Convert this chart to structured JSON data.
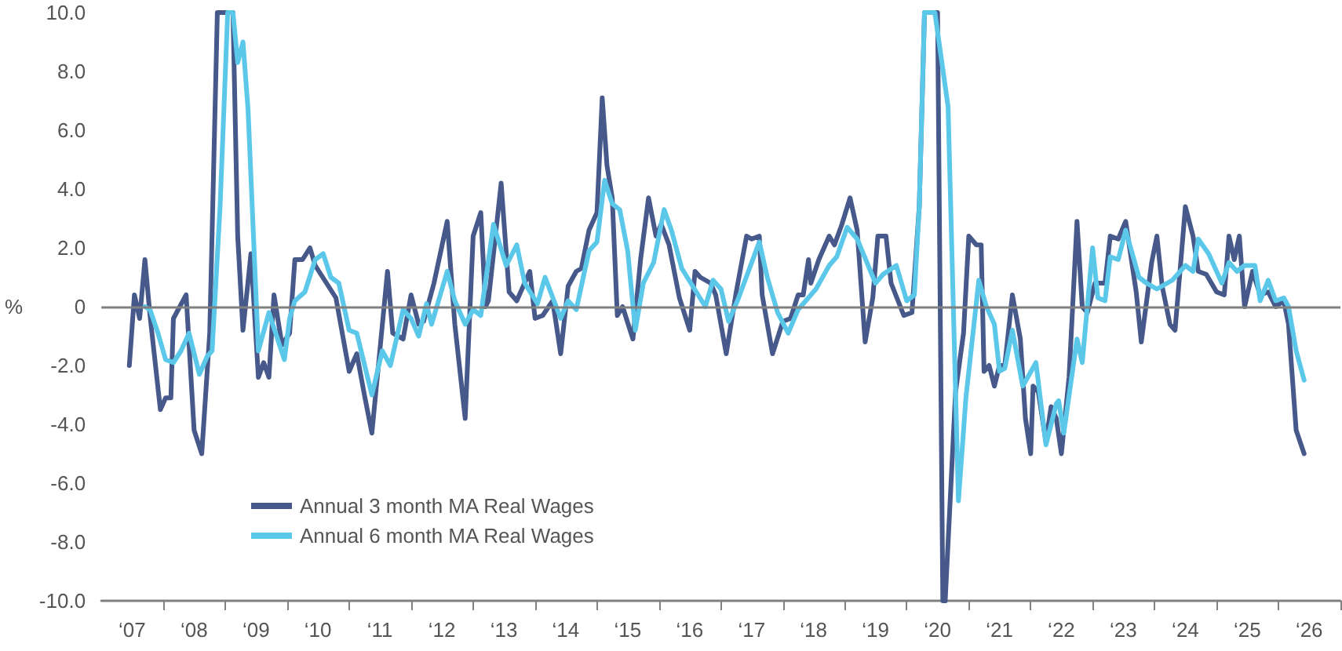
{
  "chart_data": {
    "type": "line",
    "ylabel": "%",
    "xlim": [
      "2007-01",
      "2027-01"
    ],
    "ylim": [
      -10,
      10
    ],
    "yticks": [
      {
        "value": -10,
        "label": "-10.0"
      },
      {
        "value": -8,
        "label": "-8.0"
      },
      {
        "value": -6,
        "label": "-6.0"
      },
      {
        "value": -4,
        "label": "-4.0"
      },
      {
        "value": -2,
        "label": "-2.0"
      },
      {
        "value": 0,
        "label": "0"
      },
      {
        "value": 2,
        "label": "2.0"
      },
      {
        "value": 4,
        "label": "4.0"
      },
      {
        "value": 6,
        "label": "6.0"
      },
      {
        "value": 8,
        "label": "8.0"
      },
      {
        "value": 10,
        "label": "10.0"
      }
    ],
    "xticks": [
      {
        "value": "2007-07",
        "label": "‘07"
      },
      {
        "value": "2008",
        "label": null
      },
      {
        "value": "2008-07",
        "label": "‘08"
      },
      {
        "value": "2009",
        "label": null
      },
      {
        "value": "2009-07",
        "label": "‘09"
      },
      {
        "value": "2010",
        "label": null
      },
      {
        "value": "2010-07",
        "label": "‘10"
      },
      {
        "value": "2011",
        "label": null
      },
      {
        "value": "2011-07",
        "label": "‘11"
      },
      {
        "value": "2012",
        "label": null
      },
      {
        "value": "2012-07",
        "label": "‘12"
      },
      {
        "value": "2013",
        "label": null
      },
      {
        "value": "2013-07",
        "label": "‘13"
      },
      {
        "value": "2014",
        "label": null
      },
      {
        "value": "2014-07",
        "label": "‘14"
      },
      {
        "value": "2015",
        "label": null
      },
      {
        "value": "2015-07",
        "label": "‘15"
      },
      {
        "value": "2016",
        "label": null
      },
      {
        "value": "2016-07",
        "label": "‘16"
      },
      {
        "value": "2017",
        "label": null
      },
      {
        "value": "2017-07",
        "label": "‘17"
      },
      {
        "value": "2018",
        "label": null
      },
      {
        "value": "2018-07",
        "label": "‘18"
      },
      {
        "value": "2019",
        "label": null
      },
      {
        "value": "2019-07",
        "label": "‘19"
      },
      {
        "value": "2020",
        "label": null
      },
      {
        "value": "2020-07",
        "label": "‘20"
      },
      {
        "value": "2021",
        "label": null
      },
      {
        "value": "2021-07",
        "label": "‘21"
      },
      {
        "value": "2022",
        "label": null
      },
      {
        "value": "2022-07",
        "label": "‘22"
      },
      {
        "value": "2023",
        "label": null
      },
      {
        "value": "2023-07",
        "label": "‘23"
      },
      {
        "value": "2024",
        "label": null
      },
      {
        "value": "2024-07",
        "label": "‘24"
      },
      {
        "value": "2025",
        "label": null
      },
      {
        "value": "2025-07",
        "label": "‘25"
      },
      {
        "value": "2026",
        "label": null
      },
      {
        "value": "2026-07",
        "label": "‘26"
      },
      {
        "value": "2027",
        "label": null
      }
    ],
    "grid": false,
    "legend": "bottom left",
    "line_style": "solid",
    "ref_lines": [
      {
        "axis": "y",
        "value": 0,
        "label": null,
        "color": "#808080"
      }
    ],
    "series": [
      {
        "name": "Annual 3 month MA Real Wages",
        "color": "#46598a",
        "x": [
          "2007-06-15",
          "2007-07-15",
          "2007-08-15",
          "2007-09-15",
          "2007-10-15",
          "2007-12-15",
          "2008-01-15",
          "2008-02-15",
          "2008-03-01",
          "2008-05-15",
          "2008-07-01",
          "2008-08-15",
          "2008-10-01",
          "2008-11-15",
          "2009-02-15",
          "2009-03-15",
          "2009-04-15",
          "2009-06-01",
          "2009-07-15",
          "2009-08-15",
          "2009-09-15",
          "2009-10-15",
          "2009-12-01",
          "2010-01-15",
          "2010-02-15",
          "2010-04-01",
          "2010-05-15",
          "2010-06-15",
          "2010-10-15",
          "2011-01-01",
          "2011-02-15",
          "2011-04-01",
          "2011-05-15",
          "2011-08-15",
          "2011-09-15",
          "2011-11-15",
          "2012-01-01",
          "2012-02-15",
          "2012-03-15",
          "2012-05-15",
          "2012-08-01",
          "2012-09-15",
          "2012-11-15",
          "2013-01-01",
          "2013-02-15",
          "2013-03-15",
          "2013-04-01",
          "2013-06-15",
          "2013-08-01",
          "2013-09-15",
          "2013-12-01",
          "2014-01-01",
          "2014-02-15",
          "2014-04-15",
          "2014-06-01",
          "2014-07-15",
          "2014-09-01",
          "2014-10-01",
          "2014-11-15",
          "2015-01-01",
          "2015-02-01",
          "2015-03-01",
          "2015-04-01",
          "2015-05-01",
          "2015-06-01",
          "2015-08-01",
          "2015-09-15",
          "2015-11-01",
          "2015-12-15",
          "2016-01-15",
          "2016-03-01",
          "2016-05-01",
          "2016-07-01",
          "2016-08-01",
          "2016-09-01",
          "2016-11-01",
          "2016-12-01",
          "2017-02-01",
          "2017-04-01",
          "2017-06-01",
          "2017-07-01",
          "2017-08-15",
          "2017-09-01",
          "2017-11-01",
          "2018-01-01",
          "2018-02-15",
          "2018-04-01",
          "2018-05-01",
          "2018-06-01",
          "2018-06-15",
          "2018-08-01",
          "2018-10-01",
          "2018-11-01",
          "2018-12-15",
          "2019-02-01",
          "2019-03-15",
          "2019-05-01",
          "2019-06-15",
          "2019-07-15",
          "2019-09-01",
          "2019-10-01",
          "2019-12-15",
          "2020-02-01",
          "2020-03-15",
          "2020-04-15",
          "2020-07-01",
          "2020-08-01",
          "2020-08-15",
          "2020-10-15",
          "2020-12-01",
          "2021-01-01",
          "2021-02-15",
          "2021-03-15",
          "2021-04-01",
          "2021-05-01",
          "2021-06-01",
          "2021-07-01",
          "2021-08-01",
          "2021-09-15",
          "2021-11-01",
          "2021-12-01",
          "2022-01-01",
          "2022-01-15",
          "2022-02-15",
          "2022-04-01",
          "2022-05-01",
          "2022-06-01",
          "2022-07-01",
          "2022-08-15",
          "2022-10-01",
          "2022-11-01",
          "2022-12-01",
          "2023-01-15",
          "2023-03-15",
          "2023-04-15",
          "2023-06-01",
          "2023-07-15",
          "2023-09-15",
          "2023-10-15",
          "2023-12-15",
          "2024-01-15",
          "2024-02-15",
          "2024-04-01",
          "2024-05-01",
          "2024-07-01",
          "2024-08-15",
          "2024-09-15",
          "2024-11-01",
          "2025-01-01",
          "2025-02-15",
          "2025-03-15",
          "2025-04-15",
          "2025-05-15",
          "2025-06-15",
          "2025-08-01",
          "2025-09-15",
          "2025-11-01",
          "2025-12-15",
          "2026-02-01",
          "2026-03-01",
          "2026-04-15",
          "2026-06-01"
        ],
        "values": [
          -2.0,
          0.4,
          -0.4,
          1.6,
          -0.3,
          -3.5,
          -3.1,
          -3.1,
          -0.4,
          0.4,
          -4.2,
          -5.0,
          -0.9,
          10,
          10,
          2.4,
          -0.8,
          1.8,
          -2.4,
          -1.9,
          -2.4,
          0.4,
          -1.3,
          -0.9,
          1.6,
          1.6,
          2.0,
          1.4,
          0.3,
          -2.2,
          -1.6,
          -3.0,
          -4.3,
          1.2,
          -0.9,
          -1.1,
          0.4,
          -0.6,
          -0.5,
          0.8,
          2.9,
          -0.6,
          -3.8,
          2.4,
          3.2,
          0.0,
          0.2,
          4.2,
          0.5,
          0.2,
          1.2,
          -0.4,
          -0.3,
          0.2,
          -1.6,
          0.7,
          1.2,
          1.3,
          2.6,
          3.2,
          7.1,
          4.8,
          3.7,
          -0.3,
          0.0,
          -1.1,
          1.6,
          3.7,
          2.4,
          2.8,
          2.1,
          0.3,
          -0.8,
          1.2,
          1.0,
          0.8,
          0.4,
          -1.6,
          0.5,
          2.4,
          2.3,
          2.4,
          0.4,
          -1.6,
          -0.5,
          -0.4,
          0.4,
          0.4,
          1.6,
          0.8,
          1.6,
          2.4,
          2.1,
          2.8,
          3.7,
          2.6,
          -1.2,
          0.3,
          2.4,
          2.4,
          0.8,
          -0.3,
          -0.2,
          3.4,
          10,
          10,
          -10,
          -10,
          -2.9,
          -0.9,
          2.4,
          2.1,
          2.1,
          -2.2,
          -2.0,
          -2.7,
          -2.0,
          -2.0,
          0.4,
          -1.1,
          -3.8,
          -5.0,
          -2.7,
          -2.9,
          -4.6,
          -3.4,
          -3.8,
          -5.0,
          -2.4,
          2.9,
          0.0,
          -0.2,
          0.8,
          0.8,
          2.4,
          2.3,
          2.9,
          0.5,
          -1.2,
          1.5,
          2.4,
          0.7,
          -0.6,
          -0.8,
          3.4,
          2.4,
          1.2,
          1.1,
          0.5,
          0.4,
          2.4,
          1.6,
          2.4,
          0.0,
          1.2,
          0.4,
          0.5,
          0.0,
          0.2,
          -0.6,
          -4.2,
          -5.0
        ]
      },
      {
        "name": "Annual 6 month MA Real Wages",
        "color": "#5bc8ea",
        "x": [
          "2007-09-15",
          "2007-10-15",
          "2007-12-01",
          "2008-01-15",
          "2008-03-01",
          "2008-04-15",
          "2008-06-01",
          "2008-08-01",
          "2008-09-15",
          "2008-10-15",
          "2008-12-01",
          "2009-01-15",
          "2009-02-15",
          "2009-03-15",
          "2009-04-15",
          "2009-05-15",
          "2009-07-15",
          "2009-09-15",
          "2009-12-15",
          "2010-01-15",
          "2010-02-15",
          "2010-04-15",
          "2010-06-15",
          "2010-08-01",
          "2010-09-15",
          "2010-11-01",
          "2011-01-01",
          "2011-02-15",
          "2011-05-15",
          "2011-07-15",
          "2011-09-01",
          "2011-11-15",
          "2012-01-01",
          "2012-02-15",
          "2012-04-01",
          "2012-05-01",
          "2012-08-01",
          "2012-09-15",
          "2012-11-15",
          "2013-01-01",
          "2013-02-15",
          "2013-05-01",
          "2013-07-15",
          "2013-09-15",
          "2013-11-01",
          "2014-01-15",
          "2014-03-01",
          "2014-06-01",
          "2014-07-15",
          "2014-09-01",
          "2014-11-15",
          "2015-01-01",
          "2015-02-15",
          "2015-04-01",
          "2015-05-15",
          "2015-07-01",
          "2015-08-15",
          "2015-10-01",
          "2015-12-01",
          "2016-02-01",
          "2016-03-15",
          "2016-05-15",
          "2016-10-01",
          "2016-11-15",
          "2017-01-01",
          "2017-02-15",
          "2017-04-15",
          "2017-08-15",
          "2017-10-01",
          "2017-12-01",
          "2018-02-01",
          "2018-04-01",
          "2018-07-15",
          "2018-10-01",
          "2018-11-15",
          "2019-01-15",
          "2019-03-15",
          "2019-07-01",
          "2019-08-15",
          "2019-11-01",
          "2020-01-01",
          "2020-02-15",
          "2020-03-15",
          "2020-04-15",
          "2020-06-15",
          "2020-09-01",
          "2020-11-01",
          "2020-12-15",
          "2021-03-01",
          "2021-04-15",
          "2021-06-01",
          "2021-07-01",
          "2021-08-01",
          "2021-09-15",
          "2021-11-15",
          "2022-02-01",
          "2022-04-01",
          "2022-06-01",
          "2022-06-15",
          "2022-07-15",
          "2022-10-01",
          "2022-11-01",
          "2023-01-01",
          "2023-02-01",
          "2023-03-15",
          "2023-04-15",
          "2023-06-01",
          "2023-07-15",
          "2023-10-01",
          "2023-11-15",
          "2024-01-15",
          "2024-04-15",
          "2024-07-01",
          "2024-08-15",
          "2024-09-15",
          "2024-11-15",
          "2025-02-01",
          "2025-03-15",
          "2025-05-01",
          "2025-06-15",
          "2025-08-15",
          "2025-09-15",
          "2025-11-01",
          "2025-12-15",
          "2026-02-01",
          "2026-03-01",
          "2026-04-15",
          "2026-06-01"
        ],
        "values": [
          0.0,
          -0.1,
          -0.9,
          -1.8,
          -1.9,
          -1.5,
          -0.9,
          -2.3,
          -1.7,
          -1.5,
          3.4,
          10,
          10,
          8.3,
          9.0,
          6.7,
          -1.5,
          -0.2,
          -1.8,
          -0.4,
          0.2,
          0.5,
          1.6,
          1.8,
          1.0,
          0.8,
          -0.8,
          -0.9,
          -3.0,
          -1.5,
          -2.0,
          -0.1,
          -0.4,
          -1.0,
          0.1,
          -0.6,
          1.2,
          0.2,
          -0.6,
          -0.1,
          -0.3,
          2.8,
          1.4,
          2.1,
          0.8,
          0.1,
          1.0,
          -0.4,
          0.2,
          -0.1,
          1.9,
          2.2,
          4.3,
          3.5,
          3.3,
          1.9,
          -0.8,
          0.8,
          1.5,
          3.3,
          2.6,
          1.3,
          0.0,
          0.9,
          0.6,
          -0.5,
          0.3,
          2.2,
          1.0,
          -0.2,
          -0.9,
          -0.1,
          0.6,
          1.4,
          1.7,
          2.7,
          2.3,
          0.8,
          1.1,
          1.4,
          0.2,
          0.4,
          3.4,
          10,
          10,
          6.8,
          -6.6,
          -3.1,
          0.9,
          0.0,
          -0.6,
          -2.2,
          -2.1,
          -0.8,
          -2.7,
          -1.9,
          -4.7,
          -3.3,
          -3.2,
          -4.3,
          -1.1,
          -1.9,
          2.0,
          0.3,
          0.2,
          1.7,
          1.6,
          2.6,
          1.0,
          0.8,
          0.6,
          0.9,
          1.4,
          1.2,
          2.3,
          1.8,
          0.8,
          1.5,
          1.2,
          1.4,
          1.4,
          0.2,
          0.9,
          0.2,
          0.3,
          0.0,
          -1.5,
          -2.5
        ]
      }
    ]
  }
}
